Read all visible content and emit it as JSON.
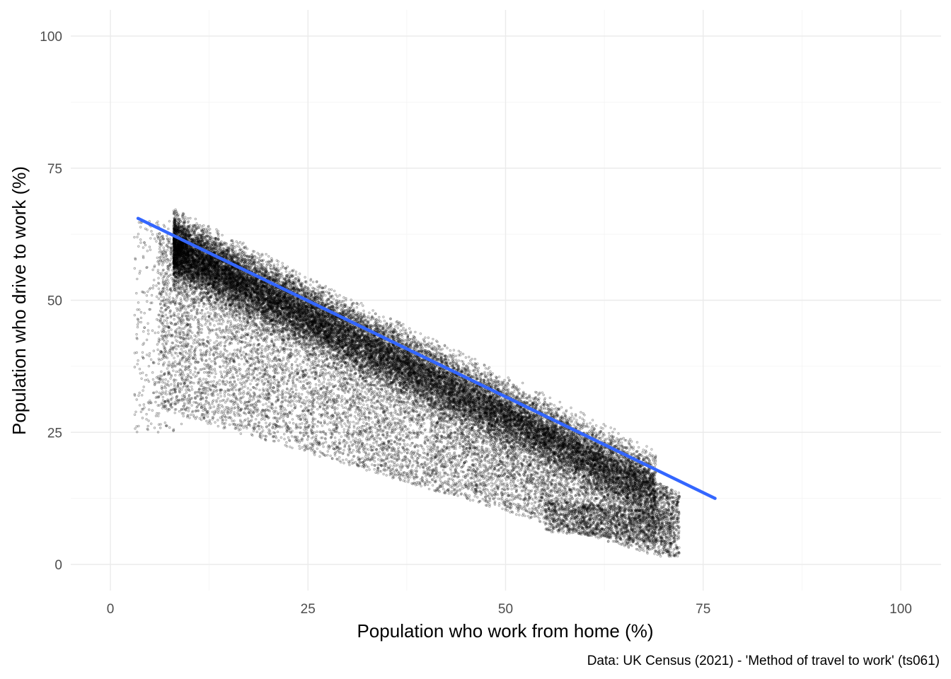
{
  "chart_data": {
    "type": "scatter",
    "title": "",
    "xlabel": "Population who work from home (%)",
    "ylabel": "Population who drive to work (%)",
    "caption": "Data: UK Census (2021) - 'Method of travel to work' (ts061)",
    "xlim": [
      0,
      100
    ],
    "ylim": [
      0,
      100
    ],
    "x_ticks": [
      0,
      25,
      50,
      75,
      100
    ],
    "y_ticks": [
      0,
      25,
      50,
      75,
      100
    ],
    "grid": true,
    "point_color": "#000000",
    "point_opacity": 0.35,
    "trend_line": {
      "x": [
        3.5,
        76.5
      ],
      "y": [
        65.5,
        12.5
      ],
      "color": "#3366FF"
    },
    "density_regions": [
      {
        "x_range": [
          8,
          70
        ],
        "y_range": [
          2,
          76
        ],
        "approx_points": 22000,
        "note": "dense upper band near y = 66 - 0.75*x"
      },
      {
        "x_range": [
          4,
          72
        ],
        "y_range": [
          1,
          50
        ],
        "approx_points": 12000,
        "note": "sparser lower triangle"
      }
    ]
  }
}
